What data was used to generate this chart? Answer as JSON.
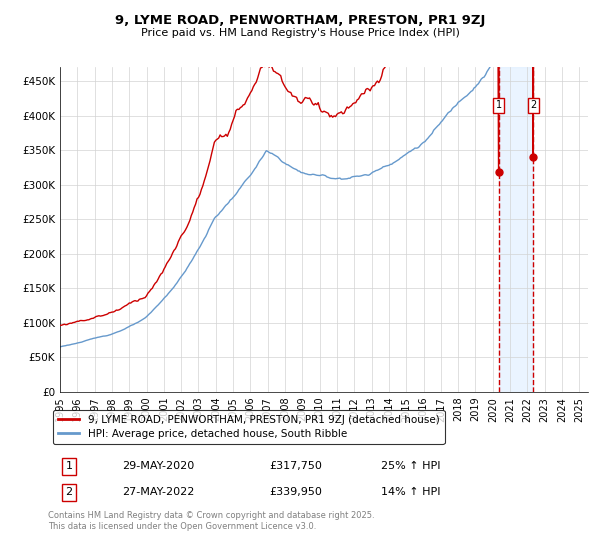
{
  "title": "9, LYME ROAD, PENWORTHAM, PRESTON, PR1 9ZJ",
  "subtitle": "Price paid vs. HM Land Registry's House Price Index (HPI)",
  "ylim": [
    0,
    470000
  ],
  "yticks": [
    0,
    50000,
    100000,
    150000,
    200000,
    250000,
    300000,
    350000,
    400000,
    450000
  ],
  "ytick_labels": [
    "£0",
    "£50K",
    "£100K",
    "£150K",
    "£200K",
    "£250K",
    "£300K",
    "£350K",
    "£400K",
    "£450K"
  ],
  "hpi_color": "#6699cc",
  "price_color": "#cc0000",
  "marker1_price": 317750,
  "marker2_price": 339950,
  "legend_line1": "9, LYME ROAD, PENWORTHAM, PRESTON, PR1 9ZJ (detached house)",
  "legend_line2": "HPI: Average price, detached house, South Ribble",
  "table_row1": [
    "1",
    "29-MAY-2020",
    "£317,750",
    "25% ↑ HPI"
  ],
  "table_row2": [
    "2",
    "27-MAY-2022",
    "£339,950",
    "14% ↑ HPI"
  ],
  "footnote": "Contains HM Land Registry data © Crown copyright and database right 2025.\nThis data is licensed under the Open Government Licence v3.0.",
  "background_shading_color": "#ddeeff",
  "dashed_line_color": "#cc0000",
  "xlim_start": 1995,
  "xlim_end": 2025.5
}
